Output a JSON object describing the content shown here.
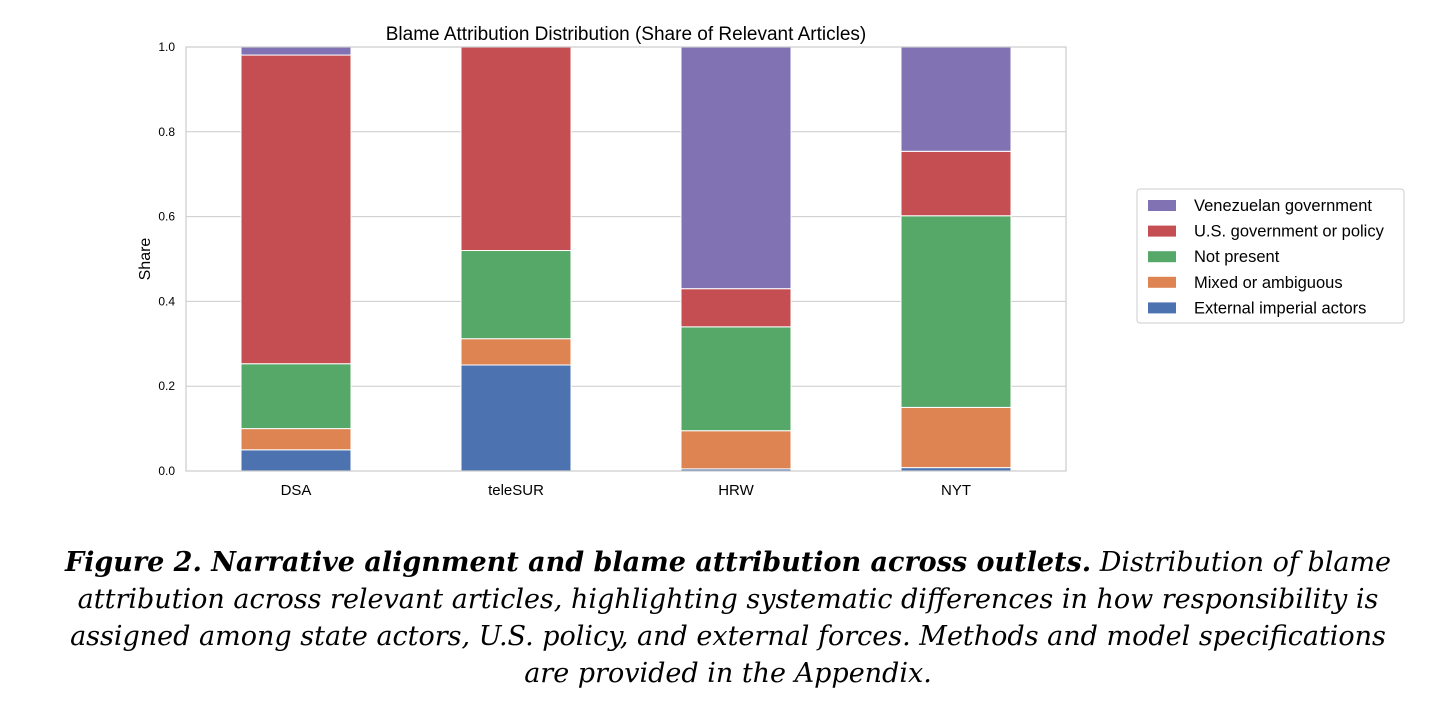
{
  "chart_data": {
    "type": "bar",
    "stacked": true,
    "title": "Blame Attribution Distribution (Share of Relevant Articles)",
    "xlabel": "",
    "ylabel": "Share",
    "ylim": [
      0,
      1.0
    ],
    "yticks": [
      "0.0",
      "0.2",
      "0.4",
      "0.6",
      "0.8",
      "1.0"
    ],
    "grid": true,
    "legend_position": "right",
    "categories": [
      "DSA",
      "teleSUR",
      "HRW",
      "NYT"
    ],
    "series": [
      {
        "name": "External imperial actors",
        "color": "#4c72b0",
        "values": [
          0.05,
          0.25,
          0.005,
          0.008
        ]
      },
      {
        "name": "Mixed or ambiguous",
        "color": "#dd8452",
        "values": [
          0.05,
          0.062,
          0.09,
          0.142
        ]
      },
      {
        "name": "Not present",
        "color": "#55a868",
        "values": [
          0.153,
          0.208,
          0.245,
          0.452
        ]
      },
      {
        "name": "U.S. government or policy",
        "color": "#c44e52",
        "values": [
          0.728,
          0.48,
          0.09,
          0.152
        ]
      },
      {
        "name": "Venezuelan government",
        "color": "#8172b3",
        "values": [
          0.019,
          0.0,
          0.57,
          0.246
        ]
      }
    ]
  },
  "caption": {
    "bold": "Figure 2. Narrative alignment and blame attribution across outlets.",
    "text": " Distribution of blame attribution across relevant articles, highlighting systematic differences in how responsibility is assigned among state actors, U.S. policy, and external forces. Methods and model specifications are provided in the Appendix."
  }
}
